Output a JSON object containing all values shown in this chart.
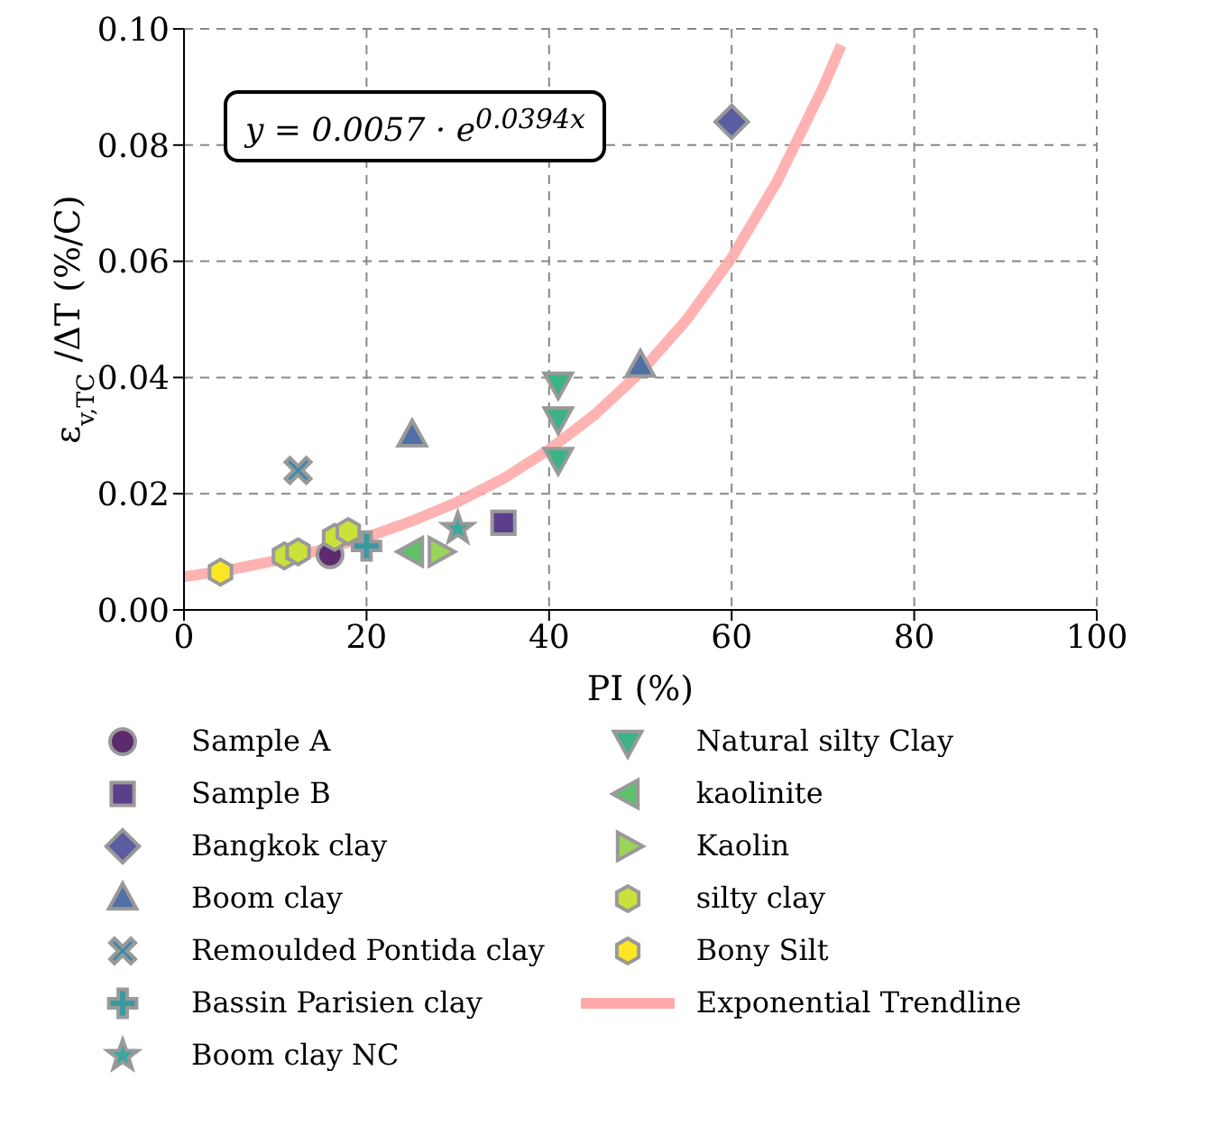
{
  "chart_data": {
    "type": "scatter",
    "xlabel": "PI (%)",
    "ylabel": "ε$_{v,TC}$/ΔT (%/C)",
    "xlim": [
      0,
      100
    ],
    "xticks": [
      0,
      20,
      40,
      60,
      80,
      100
    ],
    "ylim": [
      0,
      0.1
    ],
    "yticks": [
      {
        "value": 0,
        "label": "0.00"
      },
      {
        "value": 0.02,
        "label": "0.02"
      },
      {
        "value": 0.04,
        "label": "0.04"
      },
      {
        "value": 0.06,
        "label": "0.06"
      },
      {
        "value": 0.08,
        "label": "0.08"
      },
      {
        "value": 0.1,
        "label": "0.10"
      }
    ],
    "grid": true,
    "legend": "bottom",
    "annotations": [
      "y = 0.0057 · e$^{0.0394x}$"
    ],
    "series": [
      {
        "name": "Sample A",
        "color": "#5c2a6e",
        "marker": "circle",
        "x": [
          16
        ],
        "values": [
          0.0095
        ]
      },
      {
        "name": "Sample B",
        "color": "#5b3f8c",
        "marker": "square",
        "x": [
          35
        ],
        "values": [
          0.015
        ]
      },
      {
        "name": "Bangkok clay",
        "color": "#5a5ea0",
        "marker": "diamond",
        "x": [
          60
        ],
        "values": [
          0.084
        ]
      },
      {
        "name": "Boom clay",
        "color": "#4f6fa6",
        "marker": "triangle",
        "x": [
          25,
          50
        ],
        "values": [
          0.03,
          0.042
        ]
      },
      {
        "name": "Remoulded Pontida clay",
        "color": "#3f8aa6",
        "marker": "cross",
        "x": [
          12.5
        ],
        "values": [
          0.024
        ]
      },
      {
        "name": "Bassin Parisien clay",
        "color": "#3a98a0",
        "marker": "plus",
        "x": [
          20
        ],
        "values": [
          0.011
        ]
      },
      {
        "name": "Boom clay NC",
        "color": "#3aa89a",
        "marker": "star",
        "x": [
          30
        ],
        "values": [
          0.014
        ]
      },
      {
        "name": "Natural silty Clay",
        "color": "#3cb384",
        "marker": "triangle-down",
        "x": [
          41,
          41,
          41
        ],
        "values": [
          0.039,
          0.033,
          0.026
        ]
      },
      {
        "name": "kaolinite",
        "color": "#5cc26a",
        "marker": "triangle-left",
        "x": [
          25
        ],
        "values": [
          0.01
        ]
      },
      {
        "name": "Kaolin",
        "color": "#9ad45a",
        "marker": "triangle-right",
        "x": [
          28
        ],
        "values": [
          0.01
        ]
      },
      {
        "name": "silty clay",
        "color": "#cce03c",
        "x": [
          11,
          12.5,
          16.5,
          18
        ],
        "values": [
          0.0093,
          0.01,
          0.0125,
          0.0135
        ]
      },
      {
        "name": "Bony Silt",
        "color": "#fde725",
        "x": [
          4
        ],
        "values": [
          0.0065
        ]
      },
      {
        "name": "Exponential Trendline",
        "type": "line",
        "color": "#ffaaaa",
        "marker": "none",
        "x": [
          0,
          5,
          10,
          15,
          20,
          25,
          30,
          35,
          40,
          45,
          50,
          55,
          60,
          65,
          70,
          72
        ],
        "values": [
          0.0057,
          0.0069,
          0.0085,
          0.0103,
          0.0125,
          0.0153,
          0.0186,
          0.0226,
          0.0276,
          0.0336,
          0.0409,
          0.0498,
          0.0606,
          0.0738,
          0.0899,
          0.0972
        ]
      }
    ]
  }
}
